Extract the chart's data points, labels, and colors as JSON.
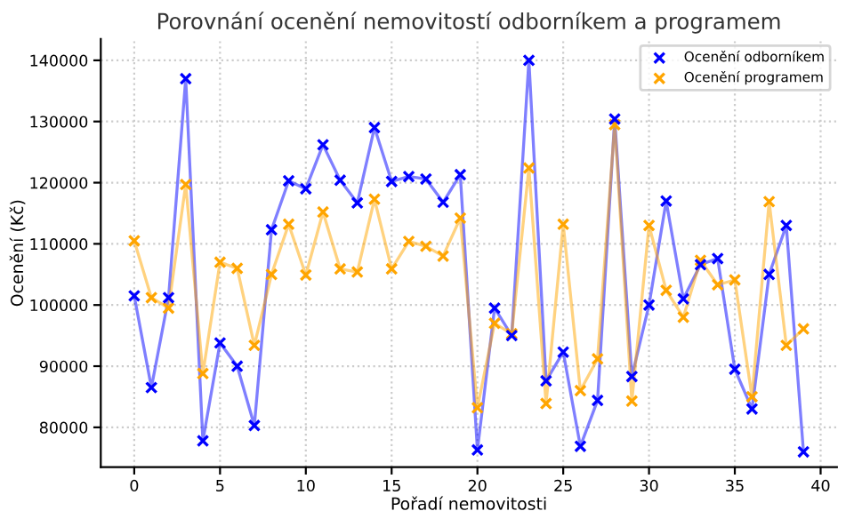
{
  "chart_data": {
    "type": "line",
    "title": "Porovnání ocenění nemovitostí odborníkem a programem",
    "xlabel": "Pořadí nemovitosti",
    "ylabel": "Ocenění (Kč)",
    "x": [
      0,
      1,
      2,
      3,
      4,
      5,
      6,
      7,
      8,
      9,
      10,
      11,
      12,
      13,
      14,
      15,
      16,
      17,
      18,
      19,
      20,
      21,
      22,
      23,
      24,
      25,
      26,
      27,
      28,
      29,
      30,
      31,
      32,
      33,
      34,
      35,
      36,
      37,
      38,
      39
    ],
    "series": [
      {
        "name": "Ocenění odborníkem",
        "color": "#0000ff",
        "values": [
          101500,
          86500,
          101200,
          137000,
          77800,
          93800,
          90000,
          80300,
          112300,
          120300,
          119000,
          126200,
          120400,
          116700,
          129000,
          120200,
          121000,
          120600,
          116800,
          121300,
          76300,
          99500,
          95000,
          140000,
          87600,
          92300,
          76900,
          84400,
          130400,
          88300,
          100000,
          117000,
          101000,
          106600,
          107600,
          89500,
          83000,
          105000,
          113000,
          76000
        ]
      },
      {
        "name": "Ocenění programem",
        "color": "#ffa500",
        "values": [
          110500,
          101200,
          99500,
          119700,
          88800,
          107000,
          106000,
          93400,
          105000,
          113200,
          104900,
          115200,
          105900,
          105400,
          117300,
          105900,
          110400,
          109600,
          108000,
          114200,
          83200,
          97000,
          95300,
          122400,
          83900,
          113200,
          86000,
          91200,
          129500,
          84300,
          113000,
          102400,
          98000,
          107300,
          103300,
          104100,
          85000,
          116900,
          93400,
          96100
        ]
      }
    ],
    "xlim": [
      -1.95,
      40.95
    ],
    "xticks": [
      0,
      5,
      10,
      15,
      20,
      25,
      30,
      35,
      40
    ],
    "ylim": [
      73500,
      143500
    ],
    "yticks": [
      80000,
      90000,
      100000,
      110000,
      120000,
      130000,
      140000
    ],
    "grid": true,
    "legend": "top right",
    "marker": "cross",
    "line_style": "solid"
  }
}
